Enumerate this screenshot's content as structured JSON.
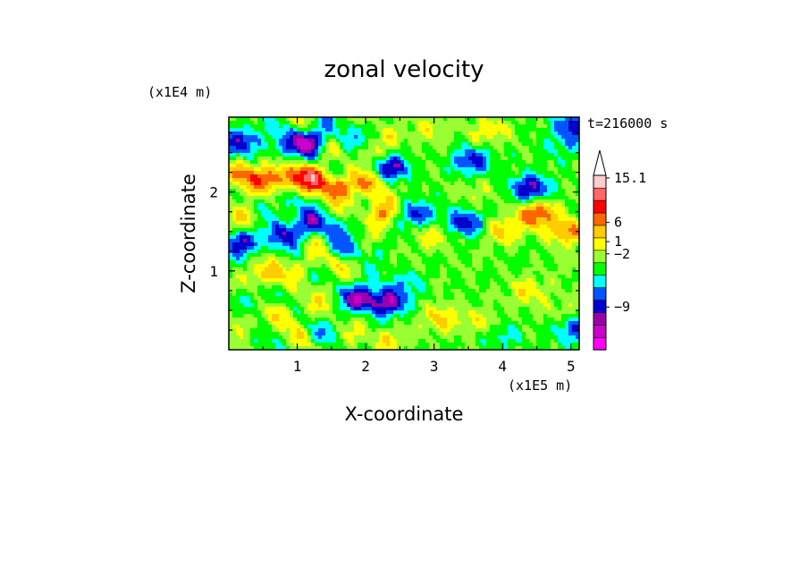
{
  "chart_data": {
    "type": "heatmap",
    "title": "zonal velocity",
    "xlabel": "X-coordinate",
    "ylabel": "Z-coordinate",
    "x_unit": "(x1E5 m)",
    "y_unit": "(x1E4 m)",
    "time_label": "t=216000 s",
    "xlim": [
      0.0,
      5.12
    ],
    "ylim": [
      0.0,
      2.95
    ],
    "x_ticks": [
      1,
      2,
      3,
      4,
      5
    ],
    "y_ticks": [
      1,
      2
    ],
    "colorbar": {
      "labels": [
        {
          "text": "15.1",
          "value": 15.1
        },
        {
          "text": "6",
          "value": 6
        },
        {
          "text": "1",
          "value": 1
        },
        {
          "text": "−2",
          "value": -2
        },
        {
          "text": "−9",
          "value": -9
        }
      ],
      "levels": [
        {
          "color": "#ff00ff"
        },
        {
          "color": "#cc00cc"
        },
        {
          "color": "#9900aa"
        },
        {
          "color": "#0000cc"
        },
        {
          "color": "#0055ff"
        },
        {
          "color": "#00ffff"
        },
        {
          "color": "#00ff00"
        },
        {
          "color": "#99ff33"
        },
        {
          "color": "#ffff00"
        },
        {
          "color": "#ffcc00"
        },
        {
          "color": "#ff6600"
        },
        {
          "color": "#ff0000"
        },
        {
          "color": "#ff6666"
        },
        {
          "color": "#ffcccc"
        }
      ],
      "top_arrow_color": "#ffffff"
    },
    "features": [
      {
        "x": 0.18,
        "z": 2.65,
        "value": -8
      },
      {
        "x": 0.75,
        "z": 2.55,
        "value": -4
      },
      {
        "x": 1.18,
        "z": 2.65,
        "value": -9
      },
      {
        "x": 1.75,
        "z": 2.72,
        "value": -3
      },
      {
        "x": 2.05,
        "z": 2.5,
        "value": 3
      },
      {
        "x": 2.3,
        "z": 2.75,
        "value": 2
      },
      {
        "x": 2.95,
        "z": 2.8,
        "value": 3
      },
      {
        "x": 3.55,
        "z": 2.4,
        "value": -7
      },
      {
        "x": 3.8,
        "z": 2.78,
        "value": 4
      },
      {
        "x": 4.4,
        "z": 2.05,
        "value": -9
      },
      {
        "x": 4.9,
        "z": 2.6,
        "value": -3
      },
      {
        "x": 5.05,
        "z": 2.85,
        "value": -8
      },
      {
        "x": 0.2,
        "z": 2.25,
        "value": 6
      },
      {
        "x": 0.6,
        "z": 2.15,
        "value": 10
      },
      {
        "x": 1.15,
        "z": 2.2,
        "value": 8
      },
      {
        "x": 1.55,
        "z": 2.08,
        "value": 9
      },
      {
        "x": 2.35,
        "z": 2.3,
        "value": -9
      },
      {
        "x": 2.72,
        "z": 1.72,
        "value": -7
      },
      {
        "x": 2.25,
        "z": 1.75,
        "value": 7
      },
      {
        "x": 2.1,
        "z": 2.1,
        "value": 6
      },
      {
        "x": 3.45,
        "z": 1.6,
        "value": -8
      },
      {
        "x": 3.0,
        "z": 1.45,
        "value": 4
      },
      {
        "x": 3.6,
        "z": 2.0,
        "value": 2
      },
      {
        "x": 4.5,
        "z": 1.72,
        "value": 9
      },
      {
        "x": 4.0,
        "z": 1.5,
        "value": 5
      },
      {
        "x": 4.95,
        "z": 1.5,
        "value": 7
      },
      {
        "x": 0.22,
        "z": 1.35,
        "value": -9
      },
      {
        "x": 0.52,
        "z": 1.75,
        "value": -8
      },
      {
        "x": 0.32,
        "z": 1.7,
        "value": 9
      },
      {
        "x": 0.92,
        "z": 1.5,
        "value": -7
      },
      {
        "x": 1.32,
        "z": 1.6,
        "value": -6
      },
      {
        "x": 1.7,
        "z": 1.25,
        "value": -4
      },
      {
        "x": 1.3,
        "z": 1.1,
        "value": 5
      },
      {
        "x": 0.5,
        "z": 0.95,
        "value": 6
      },
      {
        "x": 0.35,
        "z": 0.62,
        "value": -3
      },
      {
        "x": 0.85,
        "z": 0.5,
        "value": 4
      },
      {
        "x": 1.95,
        "z": 0.65,
        "value": -8
      },
      {
        "x": 2.33,
        "z": 0.6,
        "value": -9
      },
      {
        "x": 2.55,
        "z": 0.85,
        "value": -3
      },
      {
        "x": 2.3,
        "z": 0.15,
        "value": 4
      },
      {
        "x": 3.1,
        "z": 0.4,
        "value": 5
      },
      {
        "x": 3.7,
        "z": 0.35,
        "value": 3
      },
      {
        "x": 4.0,
        "z": 0.18,
        "value": -3
      },
      {
        "x": 4.35,
        "z": 0.75,
        "value": 4
      },
      {
        "x": 4.85,
        "z": 0.5,
        "value": 2
      },
      {
        "x": 5.05,
        "z": 0.25,
        "value": -6
      },
      {
        "x": 4.95,
        "z": 1.05,
        "value": 1
      },
      {
        "x": 3.5,
        "z": 1.1,
        "value": 0.5
      },
      {
        "x": 4.2,
        "z": 1.15,
        "value": -0.5
      },
      {
        "x": 0.1,
        "z": 0.3,
        "value": 3
      }
    ]
  }
}
